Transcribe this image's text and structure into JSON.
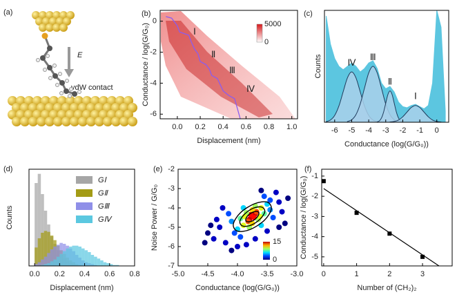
{
  "schematic": {
    "label": "(a)",
    "field_label": "E",
    "contact_label": "vdW contact"
  },
  "chart_data": [
    {
      "type": "heatmap",
      "label": "(b)",
      "xlabel": "Displacement (nm)",
      "ylabel": "Conductance / log(G/G₀)",
      "xlim": [
        -0.15,
        1.05
      ],
      "xticks": [
        {
          "value": 0,
          "label": "0.0"
        },
        0.2,
        0.4,
        0.6,
        0.8,
        {
          "value": 1,
          "label": "1.0"
        }
      ],
      "ylim": [
        -6.3,
        0.7
      ],
      "yticks": [
        0,
        -2,
        -4,
        -6
      ],
      "annotations": [
        "Ⅰ",
        "Ⅱ",
        "Ⅲ",
        "Ⅳ"
      ],
      "colorbar": {
        "ticks": [
          0,
          5000
        ],
        "colors": [
          "#ffffff",
          "#d7191c"
        ]
      },
      "series": [
        {
          "color": "#8a5cf0",
          "x": [
            -0.1,
            -0.05,
            0,
            0.02,
            0.1,
            0.12,
            0.15,
            0.18,
            0.2,
            0.25,
            0.28,
            0.3,
            0.35,
            0.4,
            0.45,
            0.5,
            0.55
          ],
          "values": [
            0.3,
            0.2,
            -0.3,
            -0.7,
            -0.9,
            -1.3,
            -1.8,
            -2.1,
            -2.6,
            -2.8,
            -3.1,
            -3.5,
            -3.7,
            -4.5,
            -4.8,
            -5.0,
            -6.3
          ]
        }
      ]
    },
    {
      "type": "area",
      "label": "(c)",
      "xlabel": "Conductance (log(G/G₀))",
      "ylabel": "Counts",
      "xlim": [
        -6.6,
        0.7
      ],
      "xticks": [
        -6,
        -5,
        -4,
        -3,
        -2,
        -1,
        0
      ],
      "ylim": [
        0,
        1
      ],
      "color": "#5cc6e0",
      "x": [
        -6.5,
        -6.25,
        -6,
        -5.75,
        -5.5,
        -5.25,
        -5,
        -4.75,
        -4.5,
        -4.25,
        -4,
        -3.75,
        -3.5,
        -3.25,
        -3,
        -2.75,
        -2.5,
        -2.25,
        -2,
        -1.75,
        -1.5,
        -1.25,
        -1,
        -0.75,
        -0.5,
        -0.25,
        0,
        0.25,
        0.5
      ],
      "values": [
        0.95,
        0.7,
        0.57,
        0.5,
        0.47,
        0.5,
        0.53,
        0.5,
        0.45,
        0.48,
        0.53,
        0.55,
        0.48,
        0.35,
        0.3,
        0.32,
        0.27,
        0.18,
        0.14,
        0.13,
        0.15,
        0.16,
        0.14,
        0.12,
        0.15,
        0.35,
        1.0,
        0.85,
        0.1
      ],
      "series": [
        {
          "name": "Ⅳ",
          "color": "#a9d0ea",
          "x": [
            -6.5,
            -6.25,
            -6,
            -5.75,
            -5.5,
            -5.25,
            -5,
            -4.75,
            -4.5,
            -4.25,
            -4,
            -3.75,
            -3.5
          ],
          "values": [
            0.005,
            0.02,
            0.061,
            0.146,
            0.273,
            0.397,
            0.45,
            0.397,
            0.273,
            0.146,
            0.061,
            0.02,
            0.005
          ]
        },
        {
          "name": "Ⅲ",
          "color": "#a9d0ea",
          "x": [
            -5.25,
            -5,
            -4.75,
            -4.5,
            -4.25,
            -4,
            -3.75,
            -3.5,
            -3.25,
            -3,
            -2.75,
            -2.5,
            -2.25
          ],
          "values": [
            0.006,
            0.022,
            0.068,
            0.163,
            0.304,
            0.441,
            0.5,
            0.441,
            0.304,
            0.163,
            0.068,
            0.022,
            0.006
          ]
        },
        {
          "name": "Ⅱ",
          "color": "#a9d0ea",
          "x": [
            -3.5,
            -3.375,
            -3.25,
            -3.125,
            -3,
            -2.875,
            -2.75,
            -2.625,
            -2.5,
            -2.375,
            -2.25,
            -2.125,
            -2
          ],
          "values": [
            0.003,
            0.012,
            0.038,
            0.091,
            0.17,
            0.247,
            0.28,
            0.247,
            0.17,
            0.091,
            0.038,
            0.012,
            0.003
          ]
        },
        {
          "name": "Ⅰ",
          "color": "#a9d0ea",
          "x": [
            -2.75,
            -2.5,
            -2.25,
            -2,
            -1.75,
            -1.5,
            -1.25,
            -1,
            -0.75,
            -0.5,
            -0.25,
            0,
            0.25
          ],
          "values": [
            0.002,
            0.007,
            0.02,
            0.049,
            0.091,
            0.132,
            0.15,
            0.132,
            0.091,
            0.049,
            0.02,
            0.007,
            0.002
          ]
        }
      ]
    },
    {
      "type": "histogram",
      "label": "(d)",
      "xlabel": "Displacement (nm)",
      "ylabel": "Counts",
      "xlim": [
        -0.045,
        0.8
      ],
      "xticks": [
        {
          "value": 0,
          "label": "0.0"
        },
        0.2,
        0.4,
        0.6,
        0.8
      ],
      "ylim": [
        0,
        1.05
      ],
      "legend": "upper right",
      "bins": [
        0,
        0.025,
        0.05,
        0.075,
        0.1,
        0.125,
        0.15,
        0.175,
        0.2,
        0.225,
        0.25,
        0.275,
        0.3,
        0.325,
        0.35,
        0.375,
        0.4,
        0.425,
        0.45,
        0.475,
        0.5,
        0.525,
        0.55,
        0.575,
        0.6,
        0.625,
        0.65,
        0.675,
        0.7
      ],
      "series": [
        {
          "name": "GⅠ",
          "color": "#a6a6a6",
          "values": [
            0.9,
            1.0,
            0.78,
            0.6,
            0.45,
            0.32,
            0.24,
            0.17,
            0.12,
            0.08,
            0.05,
            0.03,
            0.02,
            0.01,
            0,
            0,
            0,
            0,
            0,
            0,
            0,
            0,
            0,
            0,
            0,
            0,
            0,
            0
          ]
        },
        {
          "name": "GⅡ",
          "color": "#a39b16",
          "values": [
            0.2,
            0.3,
            0.36,
            0.38,
            0.37,
            0.33,
            0.28,
            0.22,
            0.17,
            0.13,
            0.09,
            0.06,
            0.04,
            0.02,
            0.01,
            0,
            0,
            0,
            0,
            0,
            0,
            0,
            0,
            0,
            0,
            0,
            0,
            0
          ]
        },
        {
          "name": "GⅢ",
          "color": "#8f8fe8",
          "values": [
            0.02,
            0.04,
            0.07,
            0.1,
            0.14,
            0.18,
            0.21,
            0.23,
            0.25,
            0.24,
            0.22,
            0.19,
            0.16,
            0.12,
            0.09,
            0.06,
            0.04,
            0.03,
            0.02,
            0.01,
            0,
            0,
            0,
            0,
            0,
            0,
            0,
            0
          ]
        },
        {
          "name": "GⅣ",
          "color": "#5bc8e0",
          "values": [
            0,
            0,
            0.01,
            0.02,
            0.03,
            0.05,
            0.07,
            0.1,
            0.13,
            0.16,
            0.19,
            0.21,
            0.22,
            0.22,
            0.21,
            0.19,
            0.17,
            0.15,
            0.12,
            0.1,
            0.08,
            0.06,
            0.04,
            0.03,
            0.02,
            0.01,
            0.01,
            0
          ]
        }
      ]
    },
    {
      "type": "scatter",
      "label": "(e)",
      "xlabel": "Conductance (log(G/G₀))",
      "ylabel": "Noise Power / G/G₀",
      "xlim": [
        -5,
        -3
      ],
      "xticks": [
        {
          "value": -5,
          "label": "-5.0"
        },
        -4.5,
        {
          "value": -4,
          "label": "-4.0"
        },
        -3.5,
        {
          "value": -3,
          "label": "-3.0"
        }
      ],
      "ylim": [
        -7,
        -2
      ],
      "yticks": [
        -7,
        -6,
        -5,
        -4,
        -3,
        -2
      ],
      "x": [
        -3.75,
        -3.7,
        -3.8,
        -3.72,
        -3.78,
        -3.68,
        -3.82,
        -3.6,
        -3.9,
        -3.65,
        -3.85,
        -3.55,
        -3.95,
        -3.7,
        -3.8,
        -3.62,
        -3.88,
        -3.75,
        -3.75,
        -4.0,
        -3.5,
        -4.1,
        -3.45,
        -3.9,
        -3.6,
        -4.05,
        -3.45,
        -4.15,
        -3.4,
        -3.95,
        -3.55,
        -4.3,
        -4.4,
        -4.2,
        -4.5,
        -4.35,
        -3.3,
        -3.25,
        -3.35,
        -4.0,
        -3.7,
        -4.25,
        -3.5,
        -3.2,
        -4.45,
        -3.6,
        -4.1,
        -3.3,
        -4.55,
        -3.15,
        -3.85
      ],
      "values": [
        -4.45,
        -4.3,
        -4.6,
        -4.5,
        -4.35,
        -4.2,
        -4.7,
        -4.0,
        -4.9,
        -4.6,
        -4.25,
        -4.3,
        -4.55,
        -3.9,
        -5.0,
        -4.45,
        -4.45,
        -4.1,
        -4.8,
        -5.1,
        -3.8,
        -4.7,
        -4.1,
        -4.0,
        -4.9,
        -5.3,
        -3.6,
        -4.3,
        -4.5,
        -5.5,
        -3.4,
        -5.0,
        -5.6,
        -5.8,
        -5.3,
        -4.6,
        -3.7,
        -4.2,
        -3.2,
        -6.0,
        -5.6,
        -4.0,
        -5.2,
        -4.8,
        -4.9,
        -3.1,
        -6.2,
        -5.0,
        -5.8,
        -3.5,
        -5.9
      ],
      "density": [
        15,
        14,
        14,
        13,
        13,
        12,
        12,
        9,
        9,
        8,
        8,
        7,
        7,
        8,
        8,
        9,
        9,
        10,
        10,
        5,
        5,
        4,
        4,
        5,
        5,
        3,
        3,
        3,
        3,
        3,
        3,
        1,
        1,
        1,
        0,
        1,
        1,
        1,
        1,
        1,
        1,
        1,
        1,
        0,
        0,
        0,
        0,
        0,
        0,
        0,
        1
      ],
      "colorbar": {
        "ticks": [
          0,
          15
        ]
      },
      "contour_color": "#000000",
      "contours": [
        {
          "x": [
            -3.5,
            -3.43,
            -3.55,
            -3.79,
            -4.0,
            -4.07,
            -3.95,
            -3.71
          ],
          "y": [
            -3.7,
            -4.06,
            -4.65,
            -5.12,
            -5.2,
            -4.84,
            -4.25,
            -3.78
          ]
        },
        {
          "x": [
            -3.59,
            -3.54,
            -3.62,
            -3.77,
            -3.91,
            -3.96,
            -3.88,
            -3.73
          ],
          "y": [
            -3.96,
            -4.2,
            -4.58,
            -4.89,
            -4.94,
            -4.7,
            -4.32,
            -4.01
          ]
        },
        {
          "x": [
            -3.66,
            -3.64,
            -3.68,
            -3.76,
            -3.84,
            -3.86,
            -3.82,
            -3.74
          ],
          "y": [
            -4.19,
            -4.31,
            -4.52,
            -4.69,
            -4.71,
            -4.59,
            -4.38,
            -4.22
          ]
        }
      ]
    },
    {
      "type": "line",
      "label": "(f)",
      "xlabel": "Number of (CH₂)₂",
      "ylabel": "Conductance / log(G/G₀)",
      "xlim": [
        -0.06,
        3.9
      ],
      "xticks": [
        0,
        1,
        2,
        3
      ],
      "ylim": [
        -5.45,
        -0.66
      ],
      "yticks": [
        -1,
        -2,
        -3,
        -4,
        -5
      ],
      "x": [
        0,
        1,
        2,
        3
      ],
      "values": [
        -1.25,
        -2.82,
        -3.85,
        -5.0
      ],
      "color": "#000000",
      "fit": {
        "x": [
          0,
          3.5
        ],
        "values": [
          -1.62,
          -5.45
        ]
      }
    }
  ]
}
